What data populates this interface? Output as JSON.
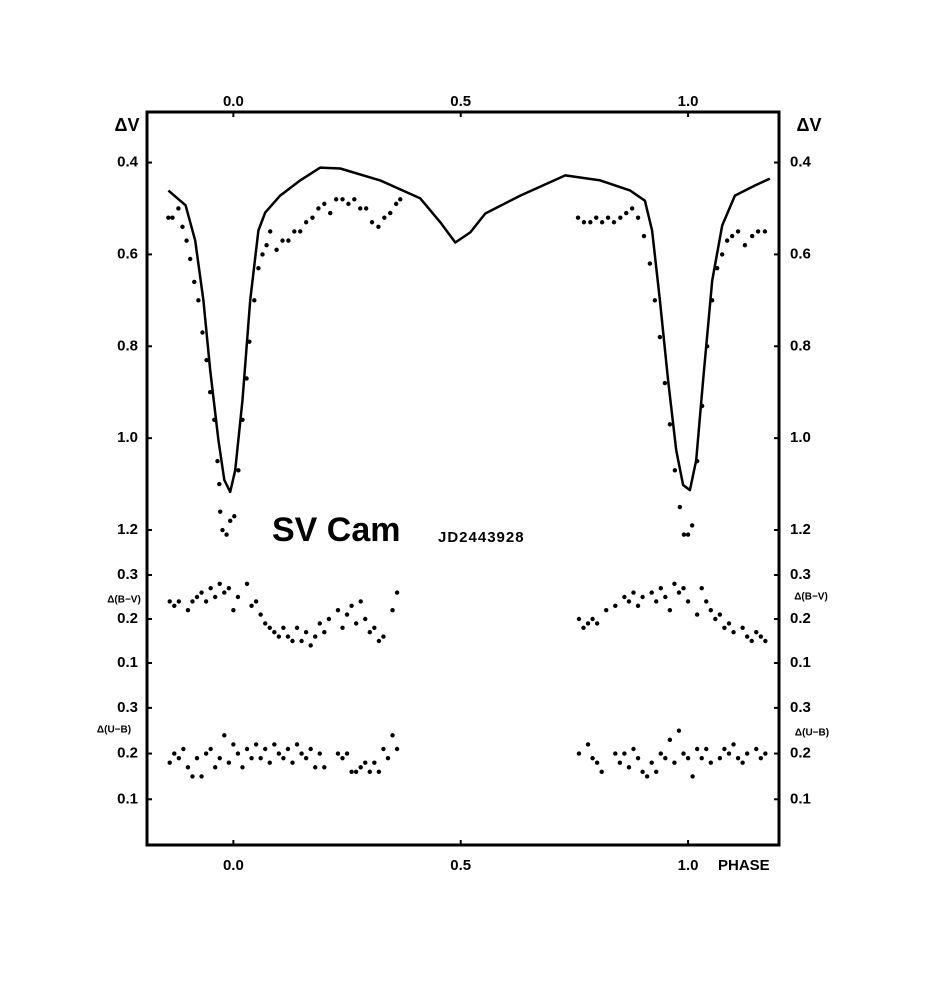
{
  "chart_data": [
    {
      "type": "scatter",
      "title": "SV Cam",
      "subtitle": "JD2443928",
      "ylabel": "ΔV",
      "xlim": [
        -0.19,
        1.2
      ],
      "xticks": [
        {
          "value": 0,
          "label": "0.0"
        },
        0.5,
        {
          "value": 1,
          "label": "1.0"
        }
      ],
      "ylim": [
        1.25,
        0.29
      ],
      "yticks": [
        0.4,
        0.6,
        0.8,
        {
          "value": 1,
          "label": "1.0"
        },
        1.2
      ],
      "series": [
        {
          "style": "line",
          "color": "#000000",
          "x": [
            -0.143,
            -0.105,
            -0.084,
            -0.066,
            -0.051,
            -0.033,
            -0.02,
            -0.007,
            0.004,
            0.02,
            0.037,
            0.055,
            0.07,
            0.103,
            0.147,
            0.191,
            0.235,
            0.323,
            0.411,
            0.455,
            0.488,
            0.521,
            0.554,
            0.631,
            0.73,
            0.807,
            0.873,
            0.905,
            0.921,
            0.938,
            0.956,
            0.974,
            0.989,
            1.004,
            1.018,
            1.033,
            1.053,
            1.075,
            1.103,
            1.147,
            1.18
          ],
          "values": [
            0.461,
            0.493,
            0.57,
            0.7,
            0.852,
            1.004,
            1.091,
            1.117,
            1.07,
            0.917,
            0.7,
            0.548,
            0.509,
            0.472,
            0.439,
            0.411,
            0.413,
            0.439,
            0.478,
            0.53,
            0.574,
            0.552,
            0.511,
            0.472,
            0.428,
            0.439,
            0.461,
            0.483,
            0.548,
            0.7,
            0.874,
            1.026,
            1.102,
            1.113,
            1.048,
            0.874,
            0.657,
            0.537,
            0.472,
            0.45,
            0.435
          ]
        },
        {
          "style": "points",
          "color": "#000000",
          "x": [
            -0.143,
            -0.134,
            -0.121,
            -0.112,
            -0.103,
            -0.095,
            -0.086,
            -0.077,
            -0.068,
            -0.059,
            -0.051,
            -0.042,
            -0.035,
            -0.031,
            -0.029,
            -0.024,
            -0.015,
            -0.007,
            0.002,
            0.011,
            0.02,
            0.029,
            0.035,
            0.046,
            0.055,
            0.064,
            0.073,
            0.081,
            0.095,
            0.108,
            0.121,
            0.134,
            0.147,
            0.16,
            0.174,
            0.187,
            0.2,
            0.213,
            0.226,
            0.24,
            0.253,
            0.266,
            0.279,
            0.292,
            0.305,
            0.319,
            0.332,
            0.345,
            0.358,
            0.367,
            0.758,
            0.771,
            0.785,
            0.798,
            0.811,
            0.824,
            0.837,
            0.851,
            0.864,
            0.877,
            0.89,
            0.903,
            0.916,
            0.927,
            0.938,
            0.949,
            0.96,
            0.971,
            0.982,
            0.991,
            1.0,
            1.009,
            1.02,
            1.031,
            1.042,
            1.053,
            1.064,
            1.075,
            1.086,
            1.097,
            1.11,
            1.125,
            1.141,
            1.154,
            1.169
          ],
          "values": [
            0.52,
            0.52,
            0.5,
            0.54,
            0.57,
            0.61,
            0.66,
            0.7,
            0.77,
            0.83,
            0.9,
            0.96,
            1.05,
            1.1,
            1.16,
            1.2,
            1.21,
            1.18,
            1.17,
            1.07,
            0.96,
            0.87,
            0.79,
            0.7,
            0.63,
            0.6,
            0.58,
            0.55,
            0.59,
            0.57,
            0.57,
            0.55,
            0.55,
            0.53,
            0.52,
            0.5,
            0.49,
            0.51,
            0.48,
            0.48,
            0.49,
            0.48,
            0.5,
            0.5,
            0.53,
            0.54,
            0.52,
            0.51,
            0.49,
            0.48,
            0.52,
            0.53,
            0.53,
            0.52,
            0.53,
            0.52,
            0.53,
            0.52,
            0.51,
            0.5,
            0.52,
            0.56,
            0.62,
            0.7,
            0.78,
            0.88,
            0.97,
            1.07,
            1.15,
            1.21,
            1.21,
            1.19,
            1.05,
            0.93,
            0.8,
            0.7,
            0.63,
            0.6,
            0.57,
            0.56,
            0.55,
            0.58,
            0.56,
            0.55,
            0.55
          ]
        }
      ]
    },
    {
      "type": "scatter",
      "ylabel": "Δ(B−V)",
      "xlim": [
        -0.19,
        1.2
      ],
      "ylim": [
        0.05,
        0.35
      ],
      "yticks": [
        0.3,
        0.2,
        0.1
      ],
      "series": [
        {
          "style": "points",
          "color": "#000000",
          "x": [
            -0.14,
            -0.13,
            -0.12,
            -0.1,
            -0.09,
            -0.08,
            -0.07,
            -0.06,
            -0.05,
            -0.04,
            -0.03,
            -0.02,
            -0.01,
            0.0,
            0.01,
            0.03,
            0.04,
            0.05,
            0.06,
            0.07,
            0.08,
            0.09,
            0.1,
            0.11,
            0.12,
            0.13,
            0.14,
            0.15,
            0.16,
            0.17,
            0.18,
            0.19,
            0.2,
            0.21,
            0.23,
            0.24,
            0.25,
            0.26,
            0.27,
            0.28,
            0.29,
            0.3,
            0.31,
            0.32,
            0.33,
            0.35,
            0.36,
            0.76,
            0.77,
            0.78,
            0.79,
            0.8,
            0.82,
            0.84,
            0.86,
            0.87,
            0.88,
            0.89,
            0.9,
            0.92,
            0.93,
            0.94,
            0.95,
            0.96,
            0.97,
            0.98,
            0.99,
            1.0,
            1.02,
            1.03,
            1.04,
            1.05,
            1.06,
            1.07,
            1.08,
            1.09,
            1.1,
            1.12,
            1.13,
            1.14,
            1.15,
            1.16,
            1.17
          ],
          "values": [
            0.24,
            0.23,
            0.24,
            0.22,
            0.24,
            0.25,
            0.26,
            0.24,
            0.27,
            0.25,
            0.28,
            0.26,
            0.27,
            0.22,
            0.25,
            0.28,
            0.23,
            0.24,
            0.21,
            0.19,
            0.18,
            0.17,
            0.16,
            0.18,
            0.16,
            0.15,
            0.18,
            0.15,
            0.17,
            0.14,
            0.16,
            0.19,
            0.17,
            0.2,
            0.22,
            0.18,
            0.21,
            0.23,
            0.19,
            0.24,
            0.2,
            0.17,
            0.18,
            0.15,
            0.16,
            0.22,
            0.26,
            0.2,
            0.18,
            0.19,
            0.2,
            0.19,
            0.22,
            0.23,
            0.25,
            0.24,
            0.26,
            0.23,
            0.25,
            0.26,
            0.24,
            0.27,
            0.25,
            0.22,
            0.28,
            0.26,
            0.27,
            0.24,
            0.21,
            0.27,
            0.24,
            0.22,
            0.2,
            0.21,
            0.18,
            0.19,
            0.17,
            0.18,
            0.16,
            0.15,
            0.17,
            0.16,
            0.15
          ]
        }
      ]
    },
    {
      "type": "scatter",
      "ylabel": "Δ(U−B)",
      "xlabel": "PHASE",
      "xlim": [
        -0.19,
        1.2
      ],
      "xticks": [
        {
          "value": 0,
          "label": "0.0"
        },
        0.5,
        {
          "value": 1,
          "label": "1.0"
        }
      ],
      "ylim": [
        0,
        0.35
      ],
      "yticks": [
        0.3,
        0.2,
        0.1
      ],
      "series": [
        {
          "style": "points",
          "color": "#000000",
          "x": [
            -0.14,
            -0.13,
            -0.12,
            -0.11,
            -0.1,
            -0.09,
            -0.08,
            -0.07,
            -0.06,
            -0.05,
            -0.04,
            -0.03,
            -0.02,
            -0.01,
            0.0,
            0.01,
            0.02,
            0.03,
            0.04,
            0.05,
            0.06,
            0.07,
            0.08,
            0.09,
            0.1,
            0.11,
            0.12,
            0.13,
            0.14,
            0.15,
            0.16,
            0.17,
            0.18,
            0.19,
            0.2,
            0.23,
            0.24,
            0.25,
            0.26,
            0.27,
            0.28,
            0.29,
            0.3,
            0.31,
            0.32,
            0.33,
            0.34,
            0.35,
            0.36,
            0.76,
            0.78,
            0.79,
            0.8,
            0.81,
            0.84,
            0.85,
            0.86,
            0.87,
            0.88,
            0.89,
            0.9,
            0.91,
            0.92,
            0.93,
            0.94,
            0.95,
            0.96,
            0.97,
            0.98,
            0.99,
            1.0,
            1.01,
            1.02,
            1.03,
            1.04,
            1.05,
            1.07,
            1.08,
            1.09,
            1.1,
            1.11,
            1.12,
            1.13,
            1.15,
            1.16,
            1.17
          ],
          "values": [
            0.18,
            0.2,
            0.19,
            0.21,
            0.17,
            0.15,
            0.19,
            0.15,
            0.2,
            0.21,
            0.17,
            0.19,
            0.24,
            0.18,
            0.22,
            0.2,
            0.17,
            0.21,
            0.19,
            0.22,
            0.19,
            0.21,
            0.18,
            0.22,
            0.2,
            0.19,
            0.21,
            0.18,
            0.22,
            0.2,
            0.19,
            0.21,
            0.17,
            0.2,
            0.17,
            0.2,
            0.19,
            0.2,
            0.16,
            0.16,
            0.17,
            0.18,
            0.16,
            0.18,
            0.16,
            0.21,
            0.19,
            0.24,
            0.21,
            0.2,
            0.22,
            0.19,
            0.18,
            0.16,
            0.2,
            0.18,
            0.2,
            0.17,
            0.21,
            0.19,
            0.16,
            0.15,
            0.18,
            0.16,
            0.2,
            0.19,
            0.23,
            0.18,
            0.25,
            0.2,
            0.19,
            0.15,
            0.21,
            0.19,
            0.21,
            0.18,
            0.19,
            0.21,
            0.2,
            0.22,
            0.19,
            0.18,
            0.2,
            0.21,
            0.19,
            0.2
          ]
        }
      ]
    }
  ]
}
